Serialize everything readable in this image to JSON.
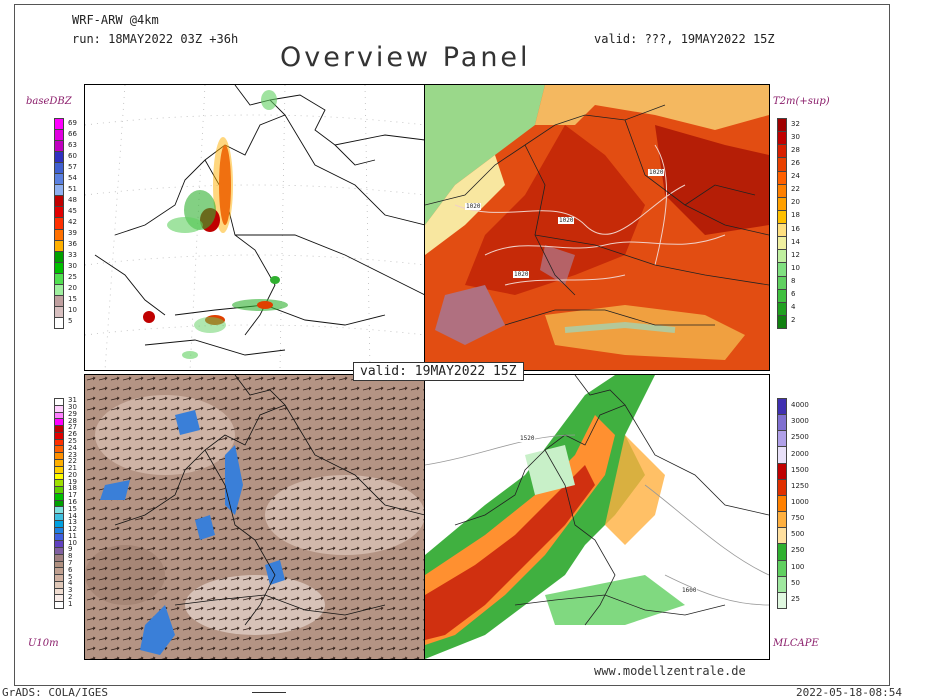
{
  "header": {
    "model": "WRF-ARW @4km",
    "run": "run: 18MAY2022 03Z +36h",
    "valid_top": "valid: ???, 19MAY2022 15Z",
    "title": "Overview Panel"
  },
  "panel_labels": {
    "top_left": "baseDBZ",
    "top_right": "T2m(+sup)",
    "bottom_left": "U10m",
    "bottom_right": "MLCAPE"
  },
  "valid_mid": "valid: 19MAY2022 15Z",
  "scales": {
    "dbz": {
      "ticks": [
        "69",
        "66",
        "63",
        "60",
        "57",
        "54",
        "51",
        "48",
        "45",
        "42",
        "39",
        "36",
        "33",
        "30",
        "25",
        "20",
        "15",
        "10",
        "5"
      ],
      "colors": [
        "#ff00ff",
        "#e000e0",
        "#c000c0",
        "#3030c0",
        "#4060d0",
        "#5a80e0",
        "#8fb0f0",
        "#c00000",
        "#e00000",
        "#ff3000",
        "#ff7000",
        "#ffb000",
        "#00a000",
        "#00c000",
        "#50e050",
        "#a0f0a0",
        "#c0a0a0",
        "#d8c0c0",
        "#ffffff"
      ]
    },
    "t2m": {
      "ticks": [
        "32",
        "30",
        "28",
        "26",
        "24",
        "22",
        "20",
        "18",
        "16",
        "14",
        "12",
        "10",
        "8",
        "6",
        "4",
        "2"
      ],
      "colors": [
        "#a00000",
        "#c00000",
        "#d82000",
        "#e84000",
        "#ff6000",
        "#ff8000",
        "#ffa000",
        "#ffc000",
        "#ffe080",
        "#f0f0a0",
        "#c0f0a0",
        "#80e080",
        "#60d060",
        "#40c040",
        "#20a020",
        "#108010"
      ]
    },
    "u10": {
      "ticks": [
        "31",
        "30",
        "29",
        "28",
        "27",
        "26",
        "25",
        "24",
        "23",
        "22",
        "21",
        "20",
        "19",
        "18",
        "17",
        "16",
        "15",
        "14",
        "13",
        "12",
        "11",
        "10",
        "9",
        "8",
        "7",
        "6",
        "5",
        "4",
        "3",
        "2",
        "1"
      ],
      "colors": [
        "#ffffff",
        "#ffd0ff",
        "#ff80ff",
        "#ff00ff",
        "#c00000",
        "#e00000",
        "#ff3000",
        "#ff6000",
        "#ff9000",
        "#ffb000",
        "#ffd000",
        "#ffff00",
        "#a0e000",
        "#60d000",
        "#00c000",
        "#00a000",
        "#80e0e0",
        "#40c0e0",
        "#00a0e0",
        "#2080e0",
        "#4060e0",
        "#6040c0",
        "#8060a0",
        "#a08080",
        "#b09080",
        "#c0a090",
        "#d0b0a0",
        "#e0c8b8",
        "#f0dcd0",
        "#f8ece8",
        "#ffffff"
      ]
    },
    "cape": {
      "ticks": [
        "4000",
        "3000",
        "2500",
        "2000",
        "1500",
        "1250",
        "1000",
        "750",
        "500",
        "250",
        "100",
        "50",
        "25"
      ],
      "colors": [
        "#4030b0",
        "#8070d0",
        "#b0a0e8",
        "#e8e0f8",
        "#c00000",
        "#e03000",
        "#ff8000",
        "#ffb040",
        "#ffe0a0",
        "#30b030",
        "#60d060",
        "#a0e8a0",
        "#e0f8e0"
      ]
    }
  },
  "map_labels": {
    "isobars_tr": [
      "1020",
      "1020",
      "1020",
      "1020"
    ],
    "cape_iso": [
      "1520",
      "1600"
    ]
  },
  "footer": {
    "website": "www.modellzentrale.de",
    "grads": "GrADS: COLA/IGES",
    "timestamp": "2022-05-18-08:54"
  }
}
